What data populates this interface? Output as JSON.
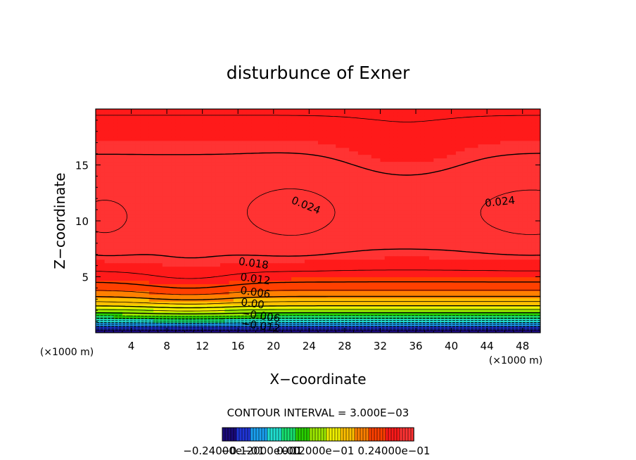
{
  "chart_data": {
    "type": "heatmap",
    "title": "disturbunce of Exner",
    "xlabel": "X−coordinate",
    "ylabel": "Z−coordinate",
    "x_unit": "(×1000 m)",
    "y_unit": "(×1000 m)",
    "xlim": [
      0,
      50
    ],
    "ylim": [
      0,
      20
    ],
    "x_ticks": [
      4,
      8,
      12,
      16,
      20,
      24,
      28,
      32,
      36,
      40,
      44,
      48
    ],
    "y_ticks": [
      5,
      10,
      15
    ],
    "contour_interval_text": "CONTOUR INTERVAL = 3.000E−03",
    "contour_interval": 0.003,
    "contour_labels": [
      {
        "text": "0.024",
        "x": 23.5,
        "y": 11.1
      },
      {
        "text": "0.024",
        "x": 45.5,
        "y": 11.4
      },
      {
        "text": "0.018",
        "x": 17.7,
        "y": 5.9
      },
      {
        "text": "0.012",
        "x": 17.9,
        "y": 4.5
      },
      {
        "text": "0.006",
        "x": 17.9,
        "y": 3.3
      },
      {
        "text": "0.00",
        "x": 17.6,
        "y": 2.3
      },
      {
        "text": "−0.006",
        "x": 18.5,
        "y": 1.2
      },
      {
        "text": "−0.012",
        "x": 18.5,
        "y": 0.3
      }
    ],
    "value_range": [
      -0.024,
      0.027
    ],
    "colorbar_labels": [
      "−0.24000e−01",
      "−0.12000e−01",
      "0.00",
      "0.12000e−01",
      "0.24000e−01"
    ],
    "colormap": [
      "#1a0a7a",
      "#1f35d6",
      "#1aa0f0",
      "#20e0d0",
      "#18e070",
      "#28d000",
      "#9ce800",
      "#f0f000",
      "#ffc000",
      "#ff8000",
      "#ff4000",
      "#ff1a1a",
      "#ff3333"
    ]
  }
}
